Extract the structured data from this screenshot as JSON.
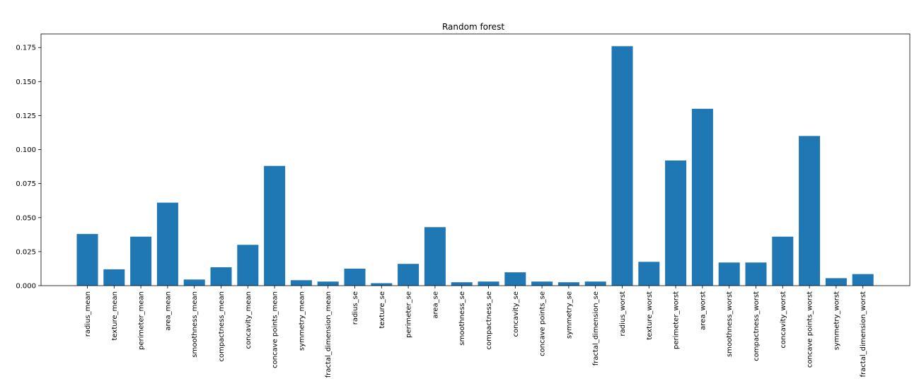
{
  "chart_data": {
    "type": "bar",
    "title": "Random forest",
    "xlabel": "",
    "ylabel": "",
    "ylim": [
      0,
      0.185
    ],
    "yticks": [
      "0.000",
      "0.025",
      "0.050",
      "0.075",
      "0.100",
      "0.125",
      "0.150",
      "0.175"
    ],
    "ytick_values": [
      0,
      0.025,
      0.05,
      0.075,
      0.1,
      0.125,
      0.15,
      0.175
    ],
    "color": "#1f77b4",
    "grid": false,
    "categories": [
      "radius_mean",
      "texture_mean",
      "perimeter_mean",
      "area_mean",
      "smoothness_mean",
      "compactness_mean",
      "concavity_mean",
      "concave points_mean",
      "symmetry_mean",
      "fractal_dimension_mean",
      "radius_se",
      "texture_se",
      "perimeter_se",
      "area_se",
      "smoothness_se",
      "compactness_se",
      "concavity_se",
      "concave points_se",
      "symmetry_se",
      "fractal_dimension_se",
      "radius_worst",
      "texture_worst",
      "perimeter_worst",
      "area_worst",
      "smoothness_worst",
      "compactness_worst",
      "concavity_worst",
      "concave points_worst",
      "symmetry_worst",
      "fractal_dimension_worst"
    ],
    "values": [
      0.038,
      0.012,
      0.036,
      0.061,
      0.0045,
      0.0135,
      0.03,
      0.088,
      0.004,
      0.003,
      0.0125,
      0.0018,
      0.016,
      0.043,
      0.0025,
      0.003,
      0.0098,
      0.003,
      0.0025,
      0.003,
      0.176,
      0.0175,
      0.092,
      0.13,
      0.017,
      0.017,
      0.036,
      0.11,
      0.0055,
      0.0085
    ]
  }
}
